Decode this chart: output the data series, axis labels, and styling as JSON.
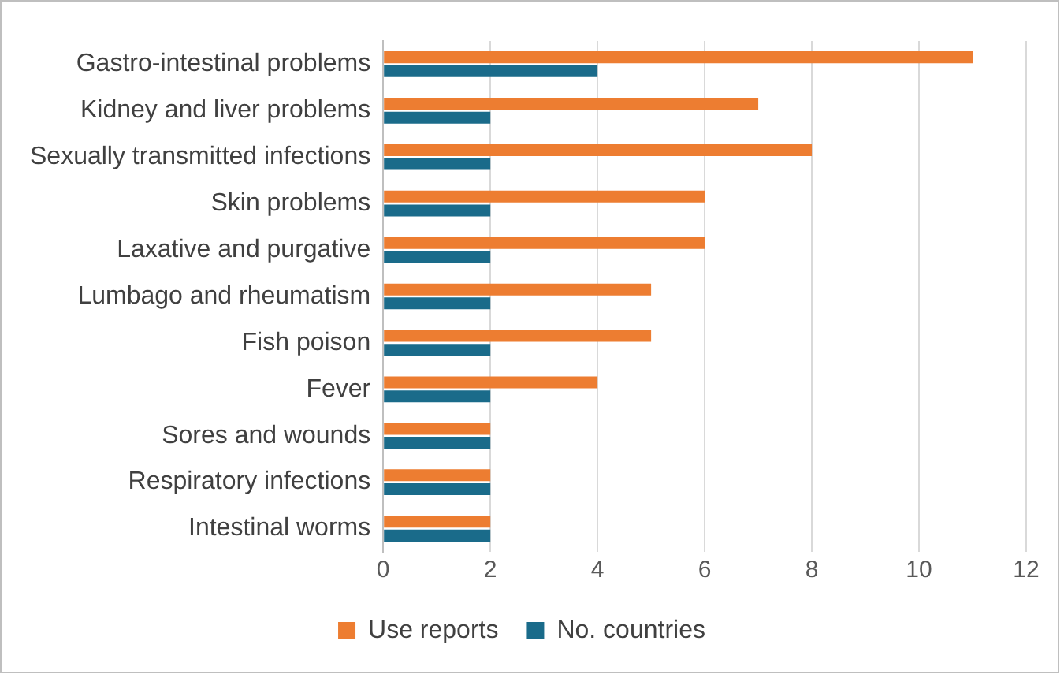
{
  "chart_data": {
    "type": "bar",
    "orientation": "horizontal",
    "categories": [
      "Gastro-intestinal problems",
      "Kidney and liver problems",
      "Sexually transmitted infections",
      "Skin problems",
      "Laxative and purgative",
      "Lumbago and rheumatism",
      "Fish poison",
      "Fever",
      "Sores and wounds",
      "Respiratory infections",
      "Intestinal worms"
    ],
    "series": [
      {
        "name": "Use reports",
        "color": "#ed7d31",
        "values": [
          11,
          7,
          8,
          6,
          6,
          5,
          5,
          4,
          2,
          2,
          2
        ]
      },
      {
        "name": "No. countries",
        "color": "#1a6b8a",
        "values": [
          4,
          2,
          2,
          2,
          2,
          2,
          2,
          2,
          2,
          2,
          2
        ]
      }
    ],
    "xlim": [
      0,
      12
    ],
    "xticks": [
      0,
      2,
      4,
      6,
      8,
      10,
      12
    ],
    "grid": "x",
    "legend": "bottom"
  }
}
